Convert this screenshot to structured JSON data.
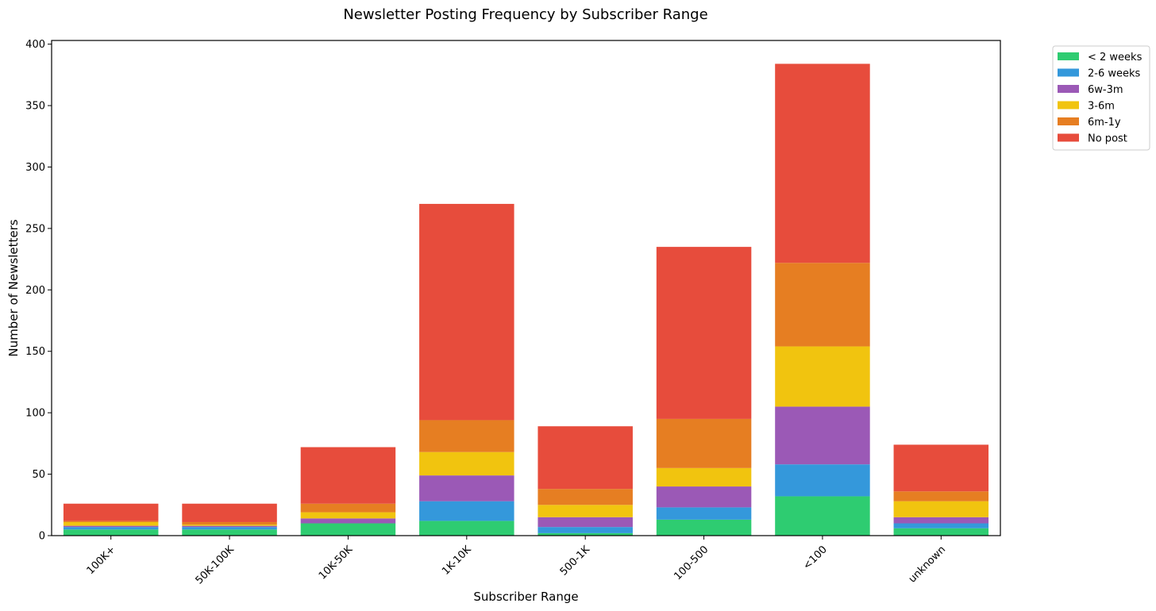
{
  "chart_data": {
    "type": "bar",
    "stacked": true,
    "title": "Newsletter Posting Frequency by Subscriber Range",
    "xlabel": "Subscriber Range",
    "ylabel": "Number of Newsletters",
    "ylim": [
      0,
      403
    ],
    "yticks": [
      0,
      50,
      100,
      150,
      200,
      250,
      300,
      350,
      400
    ],
    "grid": false,
    "legend_position": "top-right, outside plot",
    "categories": [
      "100K+",
      "50K-100K",
      "10K-50K",
      "1K-10K",
      "500-1K",
      "100-500",
      "<100",
      "unknown"
    ],
    "series": [
      {
        "name": "< 2 weeks",
        "color": "#2ecc71",
        "values": [
          5,
          5,
          10,
          12,
          2,
          13,
          32,
          6
        ]
      },
      {
        "name": "2-6 weeks",
        "color": "#3498db",
        "values": [
          2,
          2,
          0,
          16,
          5,
          10,
          26,
          4
        ]
      },
      {
        "name": "6w-3m",
        "color": "#9b59b6",
        "values": [
          1,
          1,
          4,
          21,
          8,
          17,
          47,
          5
        ]
      },
      {
        "name": "3-6m",
        "color": "#f1c40f",
        "values": [
          3,
          1,
          5,
          19,
          10,
          15,
          49,
          13
        ]
      },
      {
        "name": "6m-1y",
        "color": "#e67e22",
        "values": [
          1,
          2,
          7,
          26,
          13,
          40,
          68,
          8
        ]
      },
      {
        "name": "No post",
        "color": "#e74c3c",
        "values": [
          14,
          15,
          46,
          176,
          51,
          140,
          162,
          38
        ]
      }
    ]
  }
}
